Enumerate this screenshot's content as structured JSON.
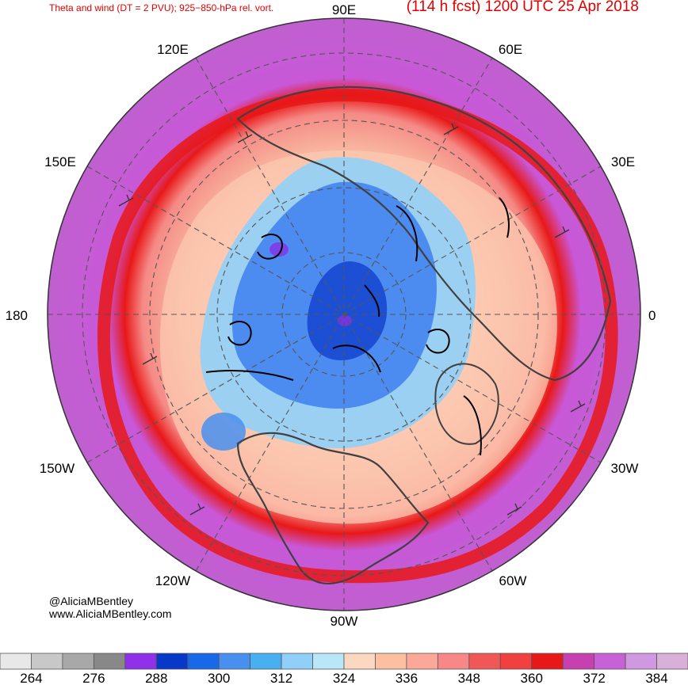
{
  "header": {
    "title_left": "Theta and wind (DT = 2 PVU); 925−850-hPa rel. vort.",
    "title_right": "(114 h fcst) 1200 UTC 25 Apr 2018"
  },
  "map": {
    "longitude_labels": [
      "90E",
      "60E",
      "30E",
      "0",
      "30W",
      "60W",
      "90W",
      "120W",
      "150W",
      "180",
      "150E",
      "120E"
    ],
    "colors": {
      "ocean_hot": "#c858d8",
      "ring_red": "#e81818",
      "subtropics": "#f8b8a0",
      "midlat": "#fcd8c8",
      "polar_blue": "#4888f0",
      "deep_blue": "#1848d0",
      "purple_core": "#8830e8",
      "land_outline": "#404040",
      "vorticity": "#000000"
    }
  },
  "credits": {
    "line1": "@AliciaMBentley",
    "line2": "www.AliciaMBentley.com"
  },
  "colorbar": {
    "colors": [
      "#e8e8e8",
      "#c8c8c8",
      "#a8a8a8",
      "#888888",
      "#9030e8",
      "#0838c8",
      "#1868e8",
      "#4890f0",
      "#48b0f0",
      "#90d0f8",
      "#b8e8f8",
      "#fcd8c0",
      "#fcc0a0",
      "#fca898",
      "#f88888",
      "#f05858",
      "#f04040",
      "#e81818",
      "#c840b0",
      "#c860d8",
      "#d098e0",
      "#d8b0d8"
    ],
    "labels": [
      "264",
      "276",
      "288",
      "300",
      "312",
      "324",
      "336",
      "348",
      "360",
      "372",
      "384"
    ]
  }
}
